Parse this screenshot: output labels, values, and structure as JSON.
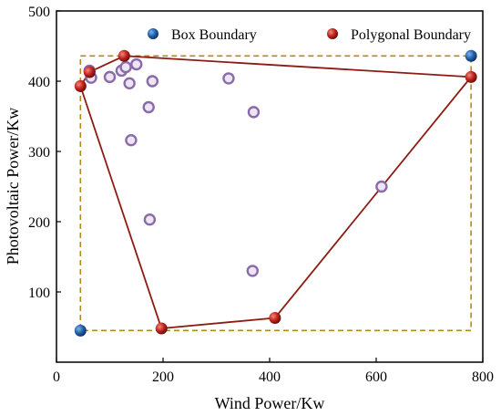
{
  "chart_data": {
    "type": "scatter",
    "xlabel": "Wind Power/Kw",
    "ylabel": "Photovoltaic Power/Kw",
    "xlim": [
      0,
      800
    ],
    "ylim": [
      0,
      500
    ],
    "x_ticks": [
      0,
      200,
      400,
      600,
      800
    ],
    "y_ticks": [
      100,
      200,
      300,
      400,
      500
    ],
    "y_tick_labels": [
      "100",
      "200",
      "300",
      "400",
      "500"
    ],
    "x_tick_labels": [
      "0",
      "200",
      "400",
      "600",
      "800"
    ],
    "grid": false,
    "legend": {
      "placement": "top",
      "entries": [
        {
          "label": "Box Boundary",
          "color": "#1f5fa8"
        },
        {
          "label": "Polygonal Boundary",
          "color": "#c0201b"
        }
      ]
    },
    "colors": {
      "box_line": "#b08a1e",
      "polygon_line": "#8e1b12",
      "scatter_edge": "#8b6aa8",
      "scatter_fill": "#ece6f4",
      "box_point": "#1f5fa8",
      "polygon_point": "#c0201b"
    },
    "scatter_points": [
      {
        "x": 65,
        "y": 405
      },
      {
        "x": 100,
        "y": 406
      },
      {
        "x": 62,
        "y": 415
      },
      {
        "x": 122,
        "y": 415
      },
      {
        "x": 130,
        "y": 420
      },
      {
        "x": 150,
        "y": 424
      },
      {
        "x": 137,
        "y": 397
      },
      {
        "x": 180,
        "y": 400
      },
      {
        "x": 323,
        "y": 404
      },
      {
        "x": 173,
        "y": 363
      },
      {
        "x": 370,
        "y": 356
      },
      {
        "x": 140,
        "y": 316
      },
      {
        "x": 610,
        "y": 250
      },
      {
        "x": 175,
        "y": 203
      },
      {
        "x": 368,
        "y": 130
      }
    ],
    "box_boundary": {
      "corners": [
        {
          "x": 45,
          "y": 45
        },
        {
          "x": 778,
          "y": 436
        }
      ]
    },
    "polygon_boundary": {
      "vertices": [
        {
          "x": 45,
          "y": 393
        },
        {
          "x": 62,
          "y": 413
        },
        {
          "x": 127,
          "y": 436
        },
        {
          "x": 778,
          "y": 406
        },
        {
          "x": 410,
          "y": 63
        },
        {
          "x": 197,
          "y": 48
        }
      ]
    }
  }
}
